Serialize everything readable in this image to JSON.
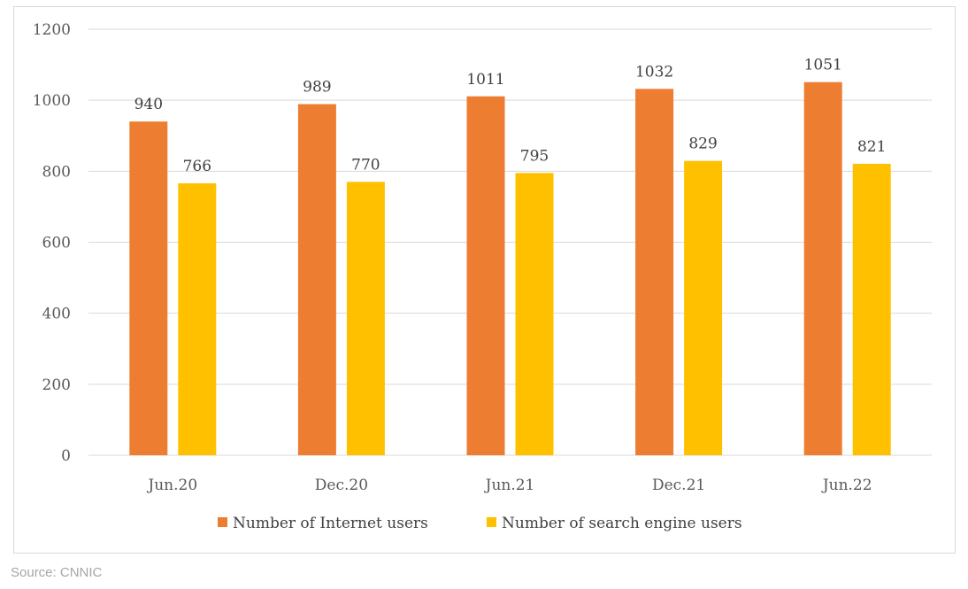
{
  "chart_data": {
    "type": "bar",
    "categories": [
      "Jun.20",
      "Dec.20",
      "Jun.21",
      "Dec.21",
      "Jun.22"
    ],
    "series": [
      {
        "name": "Number of Internet users",
        "values": [
          940,
          989,
          1011,
          1032,
          1051
        ],
        "color": "#ed7d31"
      },
      {
        "name": "Number of search engine users",
        "values": [
          766,
          770,
          795,
          829,
          821
        ],
        "color": "#ffc000"
      }
    ],
    "ylim": [
      0,
      1200
    ],
    "yticks": [
      0,
      200,
      400,
      600,
      800,
      1000,
      1200
    ],
    "grid": true,
    "legend_position": "bottom",
    "data_labels": true
  },
  "source": "Source: CNNIC"
}
